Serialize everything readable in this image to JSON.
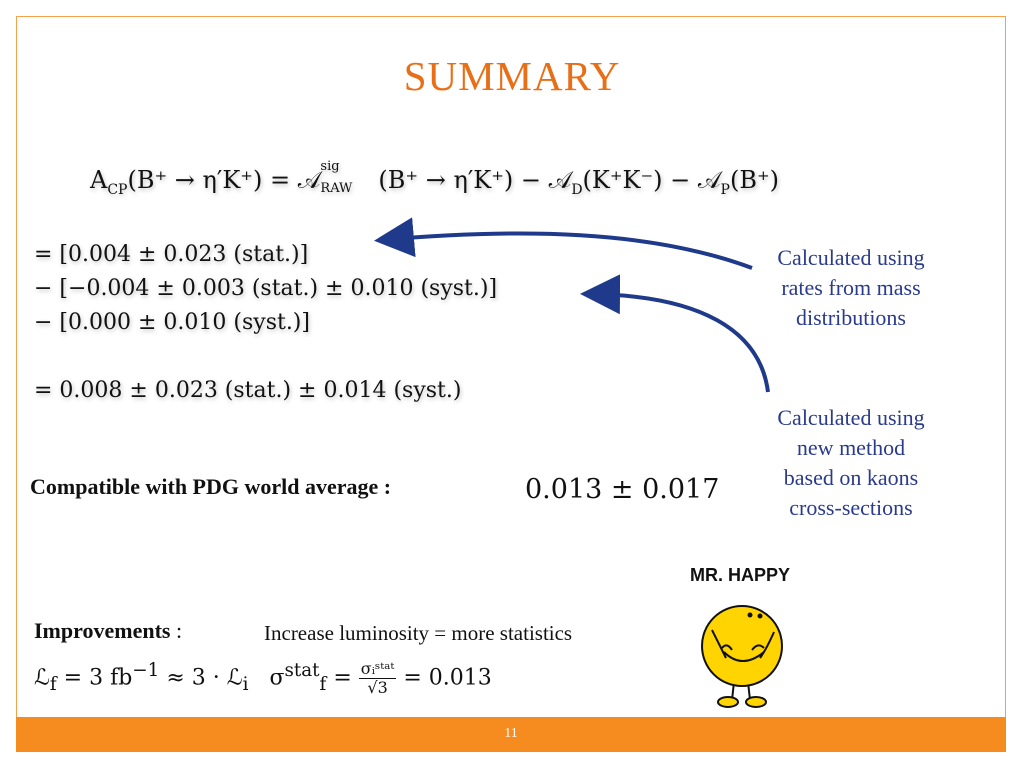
{
  "slide": {
    "title": "SUMMARY",
    "page_number": "11"
  },
  "equation": {
    "lhs": "A",
    "lhs_sub": "CP",
    "lhs_arg": "(B⁺ → η′K⁺) =",
    "raw_sym": "𝒜",
    "raw_sup": "sig",
    "raw_sub": "RAW",
    "rhs": "(B⁺ → η′K⁺) − 𝒜",
    "d_sub": "D",
    "d_arg": "(K⁺K⁻) − 𝒜",
    "p_sub": "P",
    "p_arg": "(B⁺)"
  },
  "lines": [
    "= [0.004 ± 0.023 (stat.)]",
    "− [−0.004 ± 0.003 (stat.) ± 0.010 (syst.)]",
    "− [0.000 ± 0.010 (syst.)]",
    "= 0.008 ± 0.023 (stat.) ± 0.014 (syst.)"
  ],
  "annotations": {
    "first": [
      "Calculated using",
      "rates from mass",
      "distributions"
    ],
    "second": [
      "Calculated using",
      "new method",
      "based on kaons",
      "cross-sections"
    ],
    "arrow_color": "#1f3a8a"
  },
  "compat": {
    "label": "Compatible with PDG world average :",
    "value": "0.013 ± 0.017"
  },
  "improvements": {
    "label": "Improvements",
    "colon": " :",
    "text": "Increase luminosity = more statistics",
    "formula_left": "ℒ",
    "f_sub": "f",
    "formula_mid": " = 3 fb",
    "exp": "−1",
    "formula_approx": " ≈ 3 · ℒ",
    "i_sub": "i",
    "sigma": "σ",
    "stat_sup": "stat",
    "eq": " = ",
    "frac_num": "σᵢˢᵗᵃᵗ",
    "frac_den": "√3",
    "result": " = 0.013"
  },
  "mascot": {
    "caption": "MR. HAPPY",
    "body_color": "#ffd400"
  },
  "colors": {
    "accent": "#f68b1f",
    "title": "#e86f17",
    "annotation": "#2a3a8c"
  }
}
